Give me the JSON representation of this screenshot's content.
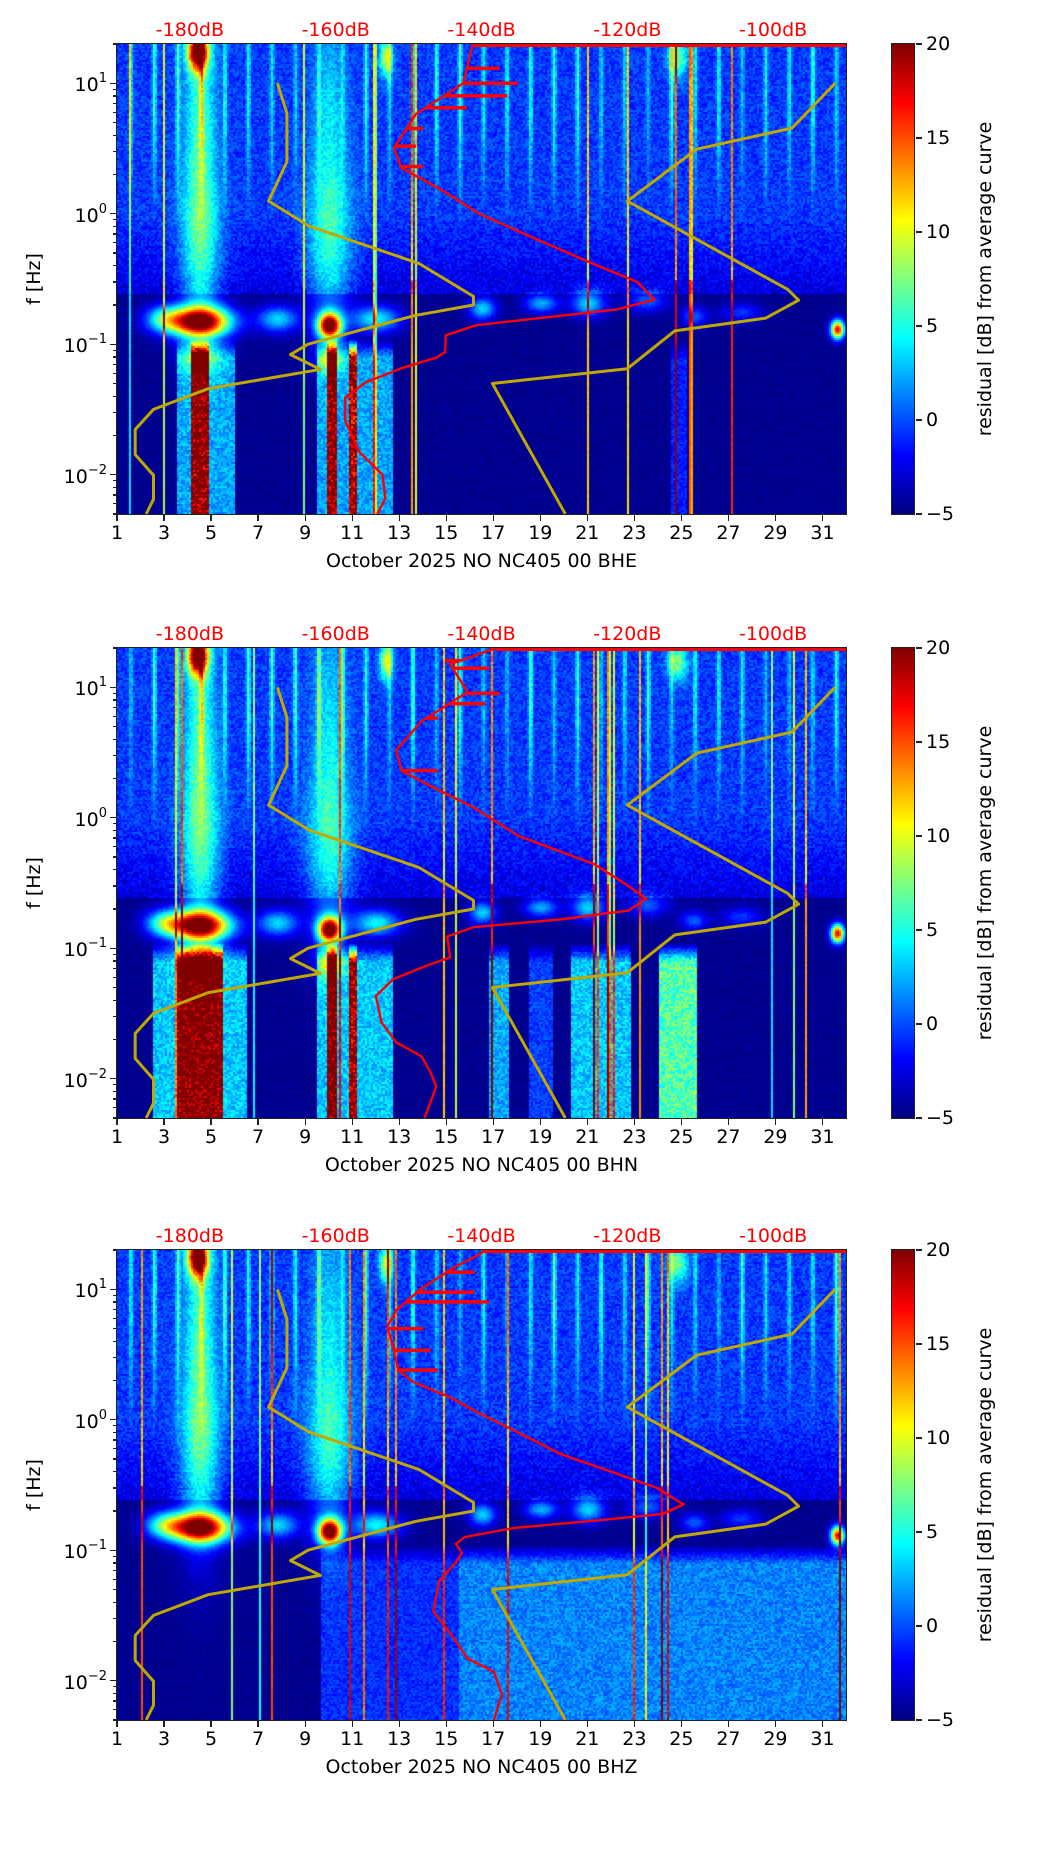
{
  "chart_data": [
    {
      "type": "heatmap",
      "xlabel": "October 2025 NO NC405 00 BHE",
      "ylabel": "f [Hz]",
      "xlim": [
        1,
        32
      ],
      "ylim": [
        0.005,
        20
      ],
      "yscale": "log",
      "xticks": [
        1,
        3,
        5,
        7,
        9,
        11,
        13,
        15,
        17,
        19,
        21,
        23,
        25,
        27,
        29,
        31
      ],
      "yticks": [
        {
          "base": "10",
          "exp": "1",
          "value": 10
        },
        {
          "base": "10",
          "exp": "0",
          "value": 1
        },
        {
          "base": "10",
          "exp": "−1",
          "value": 0.1
        },
        {
          "base": "10",
          "exp": "−2",
          "value": 0.01
        }
      ],
      "top_axis": {
        "labels": [
          "-180dB",
          "-160dB",
          "-140dB",
          "-120dB",
          "-100dB"
        ],
        "values": [
          -180,
          -160,
          -140,
          -120,
          -100
        ],
        "range_db": [
          -190,
          -90
        ],
        "color": "#ff0000"
      },
      "colorbar": {
        "label": "residual [dB] from average curve",
        "range": [
          -5,
          20
        ],
        "ticks": [
          "20",
          "15",
          "10",
          "5",
          "0",
          "−5"
        ],
        "tick_values": [
          20,
          15,
          10,
          5,
          0,
          -5
        ],
        "cmap": "jet"
      },
      "hotspots": [
        {
          "day": 4.5,
          "f_hz": 0.15,
          "residual": 20
        },
        {
          "day": 10,
          "f_hz": 0.14,
          "residual": 20
        },
        {
          "day": 31.6,
          "f_hz": 0.13,
          "residual": 18
        },
        {
          "day": 4.5,
          "f_hz": 0.02,
          "residual": 20
        },
        {
          "day": 10.8,
          "f_hz": 0.02,
          "residual": 20
        }
      ],
      "average_curve": {
        "color": "#ff0000",
        "points_f_db": [
          [
            20,
            -141.2
          ],
          [
            10,
            -142.5
          ],
          [
            5.8,
            -149
          ],
          [
            3.2,
            -152
          ],
          [
            2.25,
            -151
          ],
          [
            1.5,
            -145.3
          ],
          [
            1,
            -140.3
          ],
          [
            0.67,
            -133.3
          ],
          [
            0.42,
            -125
          ],
          [
            0.3,
            -118.6
          ],
          [
            0.22,
            -116.3
          ],
          [
            0.185,
            -121.4
          ],
          [
            0.162,
            -130.6
          ],
          [
            0.14,
            -140.7
          ],
          [
            0.117,
            -144.9
          ],
          [
            0.087,
            -145
          ],
          [
            0.079,
            -146.2
          ],
          [
            0.066,
            -150.8
          ],
          [
            0.051,
            -155.9
          ],
          [
            0.039,
            -158.7
          ],
          [
            0.026,
            -158.7
          ],
          [
            0.015,
            -156.8
          ],
          [
            0.01,
            -153.6
          ],
          [
            0.0066,
            -153.2
          ],
          [
            0.005,
            -154.3
          ]
        ],
        "spikes_f_db": [
          [
            13,
            -137.5
          ],
          [
            10,
            -135
          ],
          [
            8,
            -136.5
          ],
          [
            6.5,
            -142
          ],
          [
            4.5,
            -148
          ],
          [
            3.3,
            -149
          ],
          [
            2.3,
            -148
          ]
        ],
        "top_trace_db": [
          -141,
          -90
        ]
      },
      "nlnm": {
        "color": "#bfa800",
        "period_db": [
          [
            0.1,
            -168
          ],
          [
            0.17,
            -166.7
          ],
          [
            0.4,
            -166.7
          ],
          [
            0.8,
            -169.2
          ],
          [
            1.24,
            -163.7
          ],
          [
            2.4,
            -148.6
          ],
          [
            4.3,
            -141.1
          ],
          [
            5,
            -141.1
          ],
          [
            6,
            -149
          ],
          [
            10,
            -163.8
          ],
          [
            12,
            -166.2
          ],
          [
            15.6,
            -162.1
          ],
          [
            21.9,
            -177.5
          ],
          [
            31.6,
            -185
          ],
          [
            45,
            -187.5
          ],
          [
            70,
            -187.5
          ],
          [
            101,
            -185
          ],
          [
            154,
            -185
          ],
          [
            200,
            -186
          ]
        ]
      },
      "nhnm": {
        "color": "#bfa800",
        "period_db": [
          [
            0.1,
            -91.5
          ],
          [
            0.22,
            -97.4
          ],
          [
            0.32,
            -110.5
          ],
          [
            0.8,
            -120
          ],
          [
            3.8,
            -98
          ],
          [
            4.6,
            -96.5
          ],
          [
            6.3,
            -101
          ],
          [
            7.9,
            -113.5
          ],
          [
            15.4,
            -120
          ],
          [
            20,
            -138.5
          ],
          [
            200,
            -128.5
          ]
        ]
      }
    },
    {
      "type": "heatmap",
      "xlabel": "October 2025 NO NC405 00 BHN",
      "ylabel": "f [Hz]",
      "xlim": [
        1,
        32
      ],
      "ylim": [
        0.005,
        20
      ],
      "yscale": "log",
      "xticks": [
        1,
        3,
        5,
        7,
        9,
        11,
        13,
        15,
        17,
        19,
        21,
        23,
        25,
        27,
        29,
        31
      ],
      "yticks": [
        {
          "base": "10",
          "exp": "1",
          "value": 10
        },
        {
          "base": "10",
          "exp": "0",
          "value": 1
        },
        {
          "base": "10",
          "exp": "−1",
          "value": 0.1
        },
        {
          "base": "10",
          "exp": "−2",
          "value": 0.01
        }
      ],
      "top_axis": {
        "labels": [
          "-180dB",
          "-160dB",
          "-140dB",
          "-120dB",
          "-100dB"
        ],
        "values": [
          -180,
          -160,
          -140,
          -120,
          -100
        ],
        "range_db": [
          -190,
          -90
        ],
        "color": "#ff0000"
      },
      "colorbar": {
        "label": "residual [dB] from average curve",
        "range": [
          -5,
          20
        ],
        "ticks": [
          "20",
          "15",
          "10",
          "5",
          "0",
          "−5"
        ],
        "tick_values": [
          20,
          15,
          10,
          5,
          0,
          -5
        ],
        "cmap": "jet"
      },
      "hotspots": [
        {
          "day": 4.5,
          "f_hz": 0.15,
          "residual": 20
        },
        {
          "day": 10,
          "f_hz": 0.14,
          "residual": 20
        },
        {
          "day": 4.5,
          "f_hz": 0.03,
          "residual": 20
        },
        {
          "day": 24.8,
          "f_hz": 0.02,
          "residual": 15
        },
        {
          "day": 21.5,
          "f_hz": 0.02,
          "residual": 10
        }
      ],
      "average_curve": {
        "color": "#ff0000",
        "points_f_db": [
          [
            20,
            -138
          ],
          [
            15,
            -144.3
          ],
          [
            9.2,
            -141.9
          ],
          [
            5.5,
            -148.2
          ],
          [
            3.3,
            -151.7
          ],
          [
            2.3,
            -151
          ],
          [
            1.8,
            -147.4
          ],
          [
            1.2,
            -141.1
          ],
          [
            0.72,
            -134.8
          ],
          [
            0.44,
            -124.5
          ],
          [
            0.32,
            -120.6
          ],
          [
            0.24,
            -117.4
          ],
          [
            0.195,
            -119.8
          ],
          [
            0.166,
            -129.3
          ],
          [
            0.145,
            -141.1
          ],
          [
            0.123,
            -144.7
          ],
          [
            0.085,
            -144.3
          ],
          [
            0.074,
            -147.4
          ],
          [
            0.058,
            -152.1
          ],
          [
            0.043,
            -154.5
          ],
          [
            0.027,
            -153.7
          ],
          [
            0.019,
            -151.7
          ],
          [
            0.0148,
            -148.2
          ],
          [
            0.0112,
            -147
          ],
          [
            0.0087,
            -146.2
          ],
          [
            0.005,
            -147.8
          ]
        ],
        "spikes_f_db": [
          [
            16,
            -145
          ],
          [
            14,
            -139
          ],
          [
            9,
            -137.5
          ],
          [
            7.5,
            -139.5
          ],
          [
            5.8,
            -146
          ],
          [
            2.3,
            -146
          ]
        ],
        "top_trace_db": [
          -138,
          -90
        ]
      },
      "nlnm": {
        "color": "#bfa800",
        "period_db": [
          [
            0.1,
            -168
          ],
          [
            0.17,
            -166.7
          ],
          [
            0.4,
            -166.7
          ],
          [
            0.8,
            -169.2
          ],
          [
            1.24,
            -163.7
          ],
          [
            2.4,
            -148.6
          ],
          [
            4.3,
            -141.1
          ],
          [
            5,
            -141.1
          ],
          [
            6,
            -149
          ],
          [
            10,
            -163.8
          ],
          [
            12,
            -166.2
          ],
          [
            15.6,
            -162.1
          ],
          [
            21.9,
            -177.5
          ],
          [
            31.6,
            -185
          ],
          [
            45,
            -187.5
          ],
          [
            70,
            -187.5
          ],
          [
            101,
            -185
          ],
          [
            154,
            -185
          ],
          [
            200,
            -186
          ]
        ]
      },
      "nhnm": {
        "color": "#bfa800",
        "period_db": [
          [
            0.1,
            -91.5
          ],
          [
            0.22,
            -97.4
          ],
          [
            0.32,
            -110.5
          ],
          [
            0.8,
            -120
          ],
          [
            3.8,
            -98
          ],
          [
            4.6,
            -96.5
          ],
          [
            6.3,
            -101
          ],
          [
            7.9,
            -113.5
          ],
          [
            15.4,
            -120
          ],
          [
            20,
            -138.5
          ],
          [
            200,
            -128.5
          ]
        ]
      }
    },
    {
      "type": "heatmap",
      "xlabel": "October 2025 NO NC405 00 BHZ",
      "ylabel": "f [Hz]",
      "xlim": [
        1,
        32
      ],
      "ylim": [
        0.005,
        20
      ],
      "yscale": "log",
      "xticks": [
        1,
        3,
        5,
        7,
        9,
        11,
        13,
        15,
        17,
        19,
        21,
        23,
        25,
        27,
        29,
        31
      ],
      "yticks": [
        {
          "base": "10",
          "exp": "1",
          "value": 10
        },
        {
          "base": "10",
          "exp": "0",
          "value": 1
        },
        {
          "base": "10",
          "exp": "−1",
          "value": 0.1
        },
        {
          "base": "10",
          "exp": "−2",
          "value": 0.01
        }
      ],
      "top_axis": {
        "labels": [
          "-180dB",
          "-160dB",
          "-140dB",
          "-120dB",
          "-100dB"
        ],
        "values": [
          -180,
          -160,
          -140,
          -120,
          -100
        ],
        "range_db": [
          -190,
          -90
        ],
        "color": "#ff0000"
      },
      "colorbar": {
        "label": "residual [dB] from average curve",
        "range": [
          -5,
          20
        ],
        "ticks": [
          "20",
          "15",
          "10",
          "5",
          "0",
          "−5"
        ],
        "tick_values": [
          20,
          15,
          10,
          5,
          0,
          -5
        ],
        "cmap": "jet"
      },
      "hotspots": [
        {
          "day": 4.5,
          "f_hz": 0.15,
          "residual": 20
        },
        {
          "day": 10,
          "f_hz": 0.14,
          "residual": 20
        },
        {
          "day": 31.6,
          "f_hz": 0.13,
          "residual": 18
        }
      ],
      "average_curve": {
        "color": "#ff0000",
        "points_f_db": [
          [
            19,
            -139.9
          ],
          [
            15.1,
            -143.4
          ],
          [
            10.2,
            -148.2
          ],
          [
            6.9,
            -151.7
          ],
          [
            5.2,
            -152.9
          ],
          [
            3.5,
            -152.1
          ],
          [
            2.4,
            -151.4
          ],
          [
            1.95,
            -149.4
          ],
          [
            1.48,
            -144.3
          ],
          [
            1.15,
            -140.7
          ],
          [
            0.83,
            -135.6
          ],
          [
            0.55,
            -129.3
          ],
          [
            0.4,
            -122.2
          ],
          [
            0.3,
            -115.9
          ],
          [
            0.224,
            -112.3
          ],
          [
            0.19,
            -115.1
          ],
          [
            0.17,
            -123.8
          ],
          [
            0.148,
            -135.6
          ],
          [
            0.126,
            -142.3
          ],
          [
            0.112,
            -143.5
          ],
          [
            0.095,
            -142.7
          ],
          [
            0.081,
            -143.5
          ],
          [
            0.058,
            -145.8
          ],
          [
            0.034,
            -146.6
          ],
          [
            0.023,
            -144.3
          ],
          [
            0.0148,
            -141.9
          ],
          [
            0.0117,
            -138.3
          ],
          [
            0.0079,
            -137.2
          ],
          [
            0.005,
            -138.3
          ]
        ],
        "spikes_f_db": [
          [
            13.5,
            -141
          ],
          [
            9.5,
            -141
          ],
          [
            8,
            -139
          ],
          [
            5,
            -148
          ],
          [
            3.4,
            -147
          ],
          [
            2.4,
            -146
          ]
        ],
        "top_trace_db": [
          -140,
          -90
        ]
      },
      "nlnm": {
        "color": "#bfa800",
        "period_db": [
          [
            0.1,
            -168
          ],
          [
            0.17,
            -166.7
          ],
          [
            0.4,
            -166.7
          ],
          [
            0.8,
            -169.2
          ],
          [
            1.24,
            -163.7
          ],
          [
            2.4,
            -148.6
          ],
          [
            4.3,
            -141.1
          ],
          [
            5,
            -141.1
          ],
          [
            6,
            -149
          ],
          [
            10,
            -163.8
          ],
          [
            12,
            -166.2
          ],
          [
            15.6,
            -162.1
          ],
          [
            21.9,
            -177.5
          ],
          [
            31.6,
            -185
          ],
          [
            45,
            -187.5
          ],
          [
            70,
            -187.5
          ],
          [
            101,
            -185
          ],
          [
            154,
            -185
          ],
          [
            200,
            -186
          ]
        ]
      },
      "nhnm": {
        "color": "#bfa800",
        "period_db": [
          [
            0.1,
            -91.5
          ],
          [
            0.22,
            -97.4
          ],
          [
            0.32,
            -110.5
          ],
          [
            0.8,
            -120
          ],
          [
            3.8,
            -98
          ],
          [
            4.6,
            -96.5
          ],
          [
            6.3,
            -101
          ],
          [
            7.9,
            -113.5
          ],
          [
            15.4,
            -120
          ],
          [
            20,
            -138.5
          ],
          [
            200,
            -128.5
          ]
        ]
      }
    }
  ]
}
